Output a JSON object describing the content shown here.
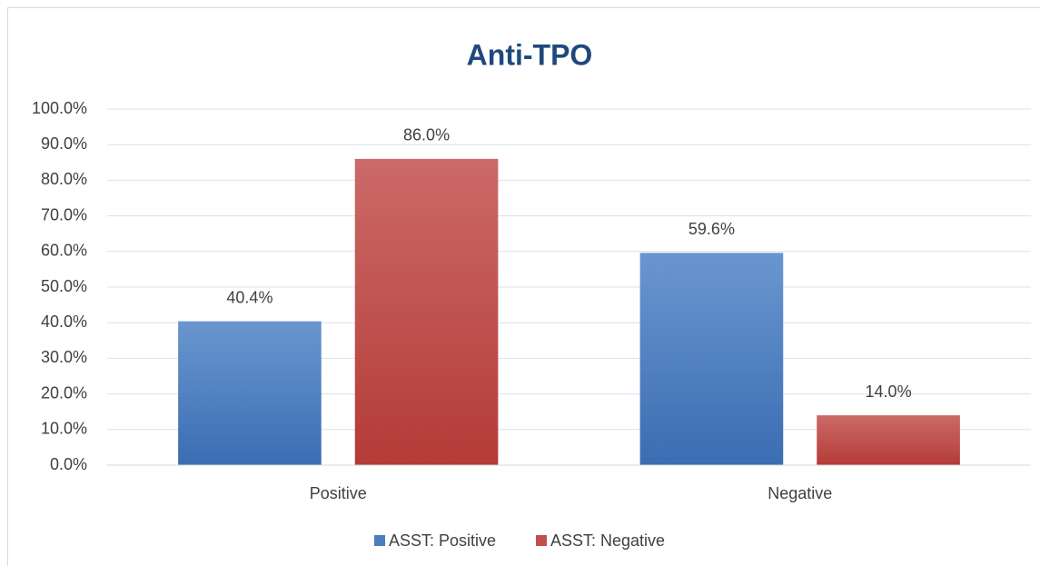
{
  "chart_data": {
    "type": "bar",
    "title": "Anti-TPO",
    "categories": [
      "Positive",
      "Negative"
    ],
    "series": [
      {
        "name": "ASST: Positive",
        "color": "#4a7ebf",
        "values": [
          40.4,
          59.6
        ],
        "value_labels": [
          "40.4%",
          "59.6%"
        ]
      },
      {
        "name": "ASST: Negative",
        "color": "#c0504d",
        "values": [
          86.0,
          14.0
        ],
        "value_labels": [
          "86.0%",
          "14.0%"
        ]
      }
    ],
    "ylim": [
      0,
      100
    ],
    "yticks": [
      {
        "value": 0,
        "label": "0.0%"
      },
      {
        "value": 10,
        "label": "10.0%"
      },
      {
        "value": 20,
        "label": "20.0%"
      },
      {
        "value": 30,
        "label": "30.0%"
      },
      {
        "value": 40,
        "label": "40.0%"
      },
      {
        "value": 50,
        "label": "50.0%"
      },
      {
        "value": 60,
        "label": "60.0%"
      },
      {
        "value": 70,
        "label": "70.0%"
      },
      {
        "value": 80,
        "label": "80.0%"
      },
      {
        "value": 90,
        "label": "90.0%"
      },
      {
        "value": 100,
        "label": "100.0%"
      }
    ],
    "grid": true,
    "legend": "bottom"
  }
}
